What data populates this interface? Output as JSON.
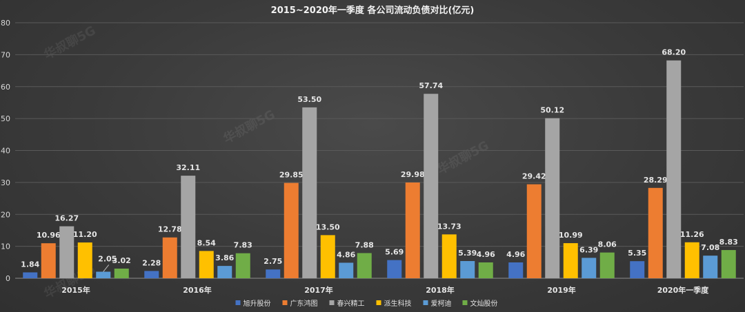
{
  "watermark": "华叔聊5G",
  "chart_data": {
    "type": "bar",
    "title": "2015~2020年一季度 各公司流动负债对比(亿元)",
    "categories": [
      "2015年",
      "2016年",
      "2017年",
      "2018年",
      "2019年",
      "2020年一季度"
    ],
    "ylim": [
      0,
      80
    ],
    "yticks": [
      0,
      10,
      20,
      30,
      40,
      50,
      60,
      70,
      80
    ],
    "grid": true,
    "legend_position": "bottom",
    "series": [
      {
        "name": "旭升股份",
        "color": "#4472c4",
        "values": [
          1.84,
          2.28,
          2.75,
          5.69,
          4.96,
          5.35
        ]
      },
      {
        "name": "广东鸿图",
        "color": "#ed7d31",
        "values": [
          10.96,
          12.78,
          29.85,
          29.98,
          29.42,
          28.29
        ]
      },
      {
        "name": "春兴精工",
        "color": "#a5a5a5",
        "values": [
          16.27,
          32.11,
          53.5,
          57.74,
          50.12,
          68.2
        ]
      },
      {
        "name": "派生科技",
        "color": "#ffc000",
        "values": [
          11.2,
          8.54,
          13.5,
          13.73,
          10.99,
          11.26
        ]
      },
      {
        "name": "爱柯迪",
        "color": "#5b9bd5",
        "values": [
          2.05,
          3.86,
          4.86,
          5.39,
          6.39,
          7.08
        ]
      },
      {
        "name": "文灿股份",
        "color": "#70ad47",
        "values": [
          3.02,
          7.83,
          7.88,
          4.96,
          8.06,
          8.83
        ]
      }
    ]
  }
}
